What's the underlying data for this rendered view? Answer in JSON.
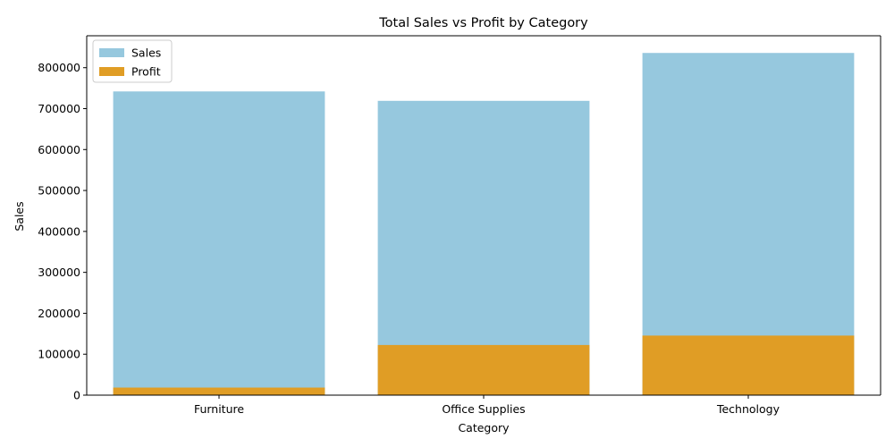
{
  "chart_data": {
    "type": "bar",
    "title": "Total Sales vs Profit by Category",
    "xlabel": "Category",
    "ylabel": "Sales",
    "categories": [
      "Furniture",
      "Office Supplies",
      "Technology"
    ],
    "series": [
      {
        "name": "Sales",
        "color": "#96c8de",
        "values": [
          742000,
          719000,
          836000
        ]
      },
      {
        "name": "Profit",
        "color": "#e09d25",
        "values": [
          18500,
          122500,
          145500
        ]
      }
    ],
    "ylim": [
      0,
      878000
    ],
    "yticks": [
      0,
      100000,
      200000,
      300000,
      400000,
      500000,
      600000,
      700000,
      800000
    ],
    "overlay": true,
    "grid": false,
    "legend_position": "top-left"
  }
}
